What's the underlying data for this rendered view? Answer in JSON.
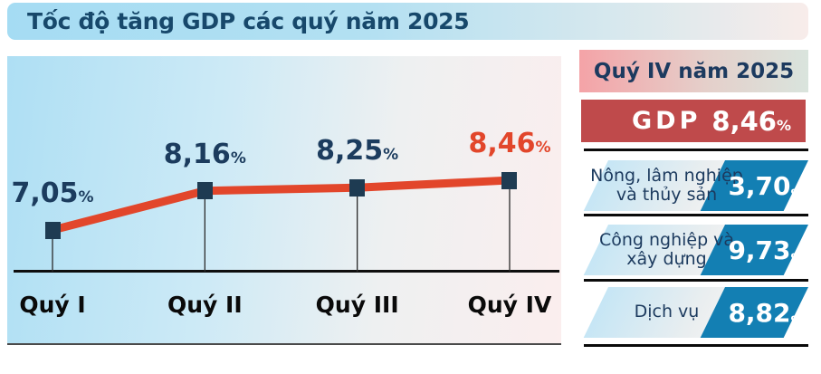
{
  "title": "Tốc độ tăng GDP các quý năm 2025",
  "chart_data": {
    "type": "line",
    "title": "Tốc độ tăng GDP các quý năm 2025",
    "categories": [
      "Quý I",
      "Quý II",
      "Quý III",
      "Quý IV"
    ],
    "values": [
      7.05,
      8.16,
      8.25,
      8.46
    ],
    "value_labels": [
      "7,05",
      "8,16",
      "8,25",
      "8,46"
    ],
    "percent_sign": "%",
    "unit": "%",
    "highlight_index": 3,
    "ylim": [
      6.5,
      9.0
    ],
    "grid": false,
    "legend": "none",
    "line_color": "#e2462b",
    "marker_color": "#1e3b52",
    "label_color": "#1c3c5e",
    "highlight_color": "#e2462b"
  },
  "sidebar": {
    "header": "Quý IV năm 2025",
    "gdp": {
      "label": "GDP",
      "value": "8,46",
      "pct": "%"
    },
    "rows": [
      {
        "line1": "Nông, lâm nghiệp",
        "line2": "và thủy sản",
        "value": "3,70",
        "pct": "%"
      },
      {
        "line1": "Công nghiệp và",
        "line2": "xây dựng",
        "value": "9,73",
        "pct": "%"
      },
      {
        "line1": "Dịch vụ",
        "value": "8,82",
        "pct": "%"
      }
    ]
  },
  "colors": {
    "title_bar_blue": "#a5dcf3",
    "panel_blue": "#aedff4",
    "panel_pink": "#fbeeee",
    "header_pink": "#f4a3a7",
    "header_sage": "#d9e4dd",
    "gdp_red": "#bf4a4b",
    "sector_blue": "#137fb3",
    "navy_text": "#1c3a5e",
    "separator_black": "#0a0a0a"
  }
}
